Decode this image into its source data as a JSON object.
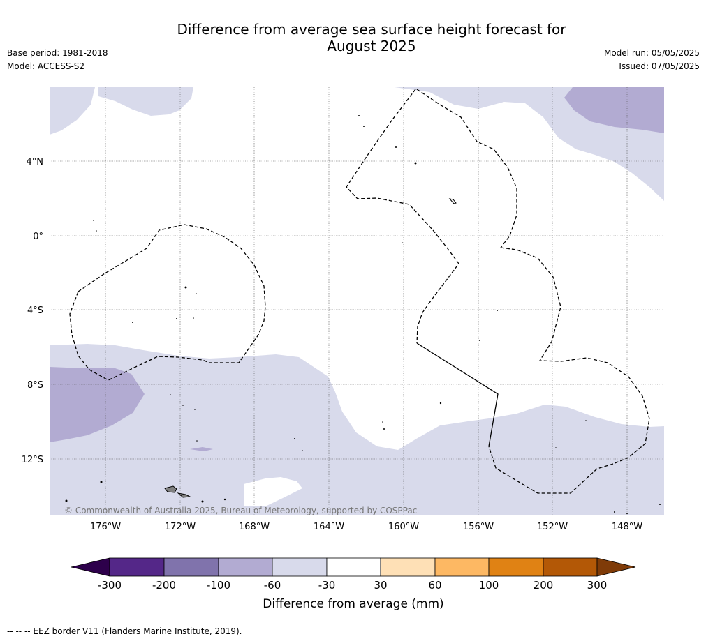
{
  "title": {
    "line1": "Difference from average sea surface height forecast for",
    "line2": "August 2025"
  },
  "meta_left": {
    "base_period": "Base period: 1981-2018",
    "model": "Model: ACCESS-S2"
  },
  "meta_right": {
    "model_run": "Model run: 05/05/2025",
    "issued": "Issued: 07/05/2025"
  },
  "map": {
    "lat_labels": [
      "4°N",
      "0°",
      "4°S",
      "8°S",
      "12°S"
    ],
    "lon_labels": [
      "176°W",
      "172°W",
      "168°W",
      "164°W",
      "160°W",
      "156°W",
      "152°W",
      "148°W"
    ],
    "copyright": "© Commonwealth of Australia 2025, Bureau of Meteorology, supported by COSPPac"
  },
  "colorbar": {
    "tick_labels": [
      "-300",
      "-200",
      "-100",
      "-60",
      "-30",
      "30",
      "60",
      "100",
      "200",
      "300"
    ],
    "label": "Difference from average (mm)",
    "colors": {
      "extend_low": "#2d004b",
      "bins": [
        "#542788",
        "#8073ac",
        "#b2abd2",
        "#d8daeb",
        "#ffffff",
        "#fee0b6",
        "#fdb863",
        "#e08214",
        "#b35806"
      ],
      "extend_high": "#7f3b08"
    }
  },
  "footnote": "--  --  -- EEZ border V11 (Flanders Marine Institute, 2019)."
}
